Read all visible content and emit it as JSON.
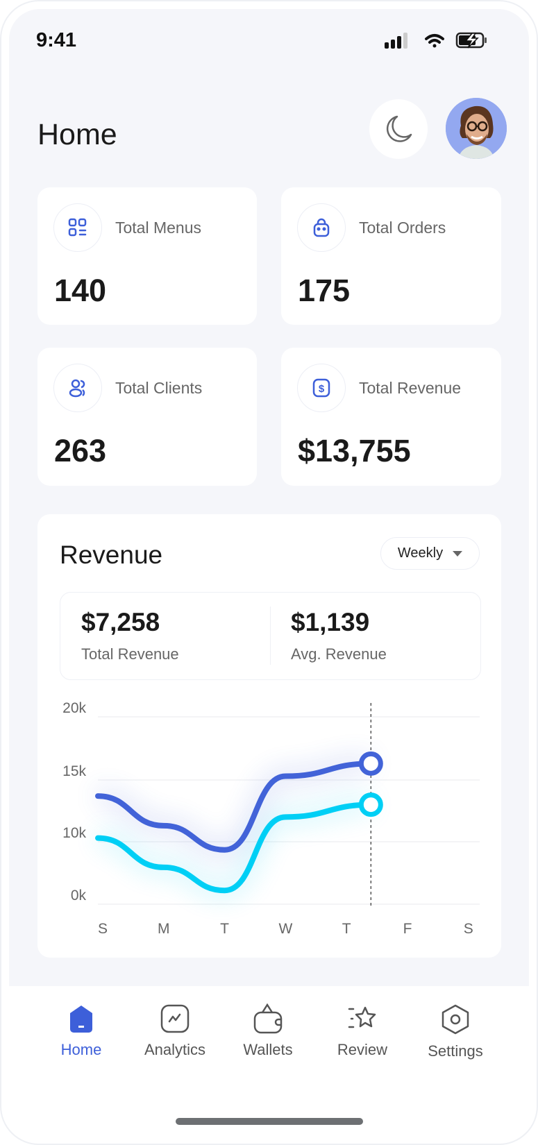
{
  "status_bar": {
    "time": "9:41",
    "icons": [
      "signal-icon",
      "wifi-icon",
      "battery-charging-icon"
    ]
  },
  "header": {
    "title": "Home",
    "theme_toggle_icon": "moon-icon",
    "avatar_icon": "user-avatar"
  },
  "stats": [
    {
      "label": "Total Menus",
      "value": "140",
      "icon": "menu-grid-icon"
    },
    {
      "label": "Total Orders",
      "value": "175",
      "icon": "shopping-bag-icon"
    },
    {
      "label": "Total Clients",
      "value": "263",
      "icon": "users-icon"
    },
    {
      "label": "Total Revenue",
      "value": "$13,755",
      "icon": "dollar-icon"
    }
  ],
  "revenue": {
    "title": "Revenue",
    "period": "Weekly",
    "total_value": "$7,258",
    "total_label": "Total Revenue",
    "avg_value": "$1,139",
    "avg_label": "Avg. Revenue"
  },
  "chart_data": {
    "type": "line",
    "categories": [
      "S",
      "M",
      "T",
      "W",
      "T",
      "F",
      "S"
    ],
    "y_tick_labels": [
      "0k",
      "10k",
      "15k",
      "20k"
    ],
    "grid": true,
    "x": [
      0,
      1,
      2,
      3,
      4.4
    ],
    "series": [
      {
        "values": [
          13.7,
          11.3,
          8.7,
          15.3,
          16.3
        ],
        "color": "#4263d8"
      },
      {
        "values": [
          10.3,
          5.9,
          2.2,
          12.0,
          13.0
        ],
        "color": "#00cff5"
      }
    ],
    "highlight_marker": "between T and F"
  },
  "nav": {
    "active_color": "#3d5fd9",
    "items": [
      {
        "label": "Home",
        "icon": "home-icon",
        "active": true
      },
      {
        "label": "Analytics",
        "icon": "analytics-icon"
      },
      {
        "label": "Wallets",
        "icon": "wallet-icon"
      },
      {
        "label": "Review",
        "icon": "star-icon"
      },
      {
        "label": "Settings",
        "icon": "settings-icon"
      }
    ]
  }
}
